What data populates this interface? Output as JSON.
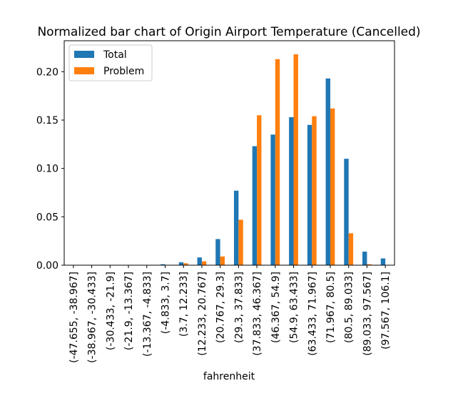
{
  "chart_data": {
    "type": "bar",
    "title": "Normalized bar chart of Origin Airport Temperature (Cancelled)",
    "xlabel": "fahrenheit",
    "ylabel": "",
    "ylim": [
      0,
      0.232
    ],
    "yticks": [
      "0.00",
      "0.05",
      "0.10",
      "0.15",
      "0.20"
    ],
    "ytick_values": [
      0,
      0.05,
      0.1,
      0.15,
      0.2
    ],
    "grid": false,
    "legend_position": "top-left",
    "categories": [
      "(-47.655, -38.967]",
      "(-38.967, -30.433]",
      "(-30.433, -21.9]",
      "(-21.9, -13.367]",
      "(-13.367, -4.833]",
      "(-4.833, 3.7]",
      "(3.7, 12.233]",
      "(12.233, 20.767]",
      "(20.767, 29.3]",
      "(29.3, 37.833]",
      "(37.833, 46.367]",
      "(46.367, 54.9]",
      "(54.9, 63.433]",
      "(63.433, 71.967]",
      "(71.967, 80.5]",
      "(80.5, 89.033]",
      "(89.033, 97.567]",
      "(97.567, 106.1]"
    ],
    "series": [
      {
        "name": "Total",
        "color": "#1f77b4",
        "values": [
          0.0,
          0.0,
          0.0,
          0.0,
          0.0,
          0.001,
          0.003,
          0.008,
          0.027,
          0.077,
          0.123,
          0.135,
          0.153,
          0.145,
          0.193,
          0.11,
          0.014,
          0.007
        ]
      },
      {
        "name": "Problem",
        "color": "#ff7f0e",
        "values": [
          0.0,
          0.0,
          0.0,
          0.0,
          0.0,
          0.0,
          0.002,
          0.004,
          0.009,
          0.047,
          0.155,
          0.213,
          0.218,
          0.154,
          0.162,
          0.033,
          0.001,
          0.0
        ]
      }
    ]
  }
}
